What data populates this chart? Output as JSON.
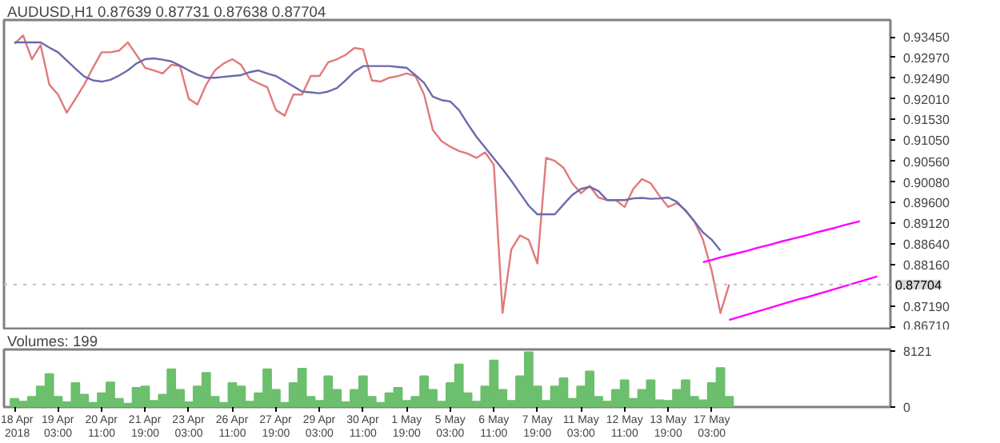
{
  "chart_data": [
    {
      "type": "line",
      "title": "AUDUSD,H1  0.87639 0.87731 0.87638 0.87704",
      "ylim": [
        0.8664,
        0.9384
      ],
      "tick_labels": "y",
      "grid": false,
      "categories": [
        null,
        null,
        null,
        null,
        null,
        null,
        null,
        null,
        null,
        null,
        null,
        null,
        null,
        null,
        null,
        null,
        null,
        null,
        null,
        null,
        null,
        null,
        null,
        null,
        null,
        null,
        null,
        null,
        null,
        null,
        null,
        null,
        null,
        null,
        null,
        null,
        null,
        null,
        null,
        null,
        null,
        null,
        null,
        null,
        null,
        null,
        null,
        null,
        null,
        null,
        null,
        null,
        null,
        null,
        null,
        null,
        null,
        null,
        null,
        null,
        null,
        null,
        null,
        null,
        null,
        null,
        null,
        null,
        null,
        null,
        null,
        null,
        null,
        null,
        null,
        null,
        null,
        null,
        null,
        null,
        null,
        null,
        null,
        null,
        null,
        null,
        null,
        null,
        null,
        null,
        null,
        null,
        null,
        null,
        null,
        null,
        null,
        null,
        null,
        null,
        null
      ],
      "yticks": [
        {
          "value": 0.9345,
          "label": "0.93450"
        },
        {
          "value": 0.9297,
          "label": "0.92970"
        },
        {
          "value": 0.9249,
          "label": "0.92490"
        },
        {
          "value": 0.9201,
          "label": "0.92010"
        },
        {
          "value": 0.9153,
          "label": "0.91530"
        },
        {
          "value": 0.9105,
          "label": "0.91050"
        },
        {
          "value": 0.9056,
          "label": "0.90560"
        },
        {
          "value": 0.9008,
          "label": "0.90080"
        },
        {
          "value": 0.896,
          "label": "0.89600"
        },
        {
          "value": 0.8912,
          "label": "0.89120"
        },
        {
          "value": 0.8864,
          "label": "0.88640"
        },
        {
          "value": 0.8816,
          "label": "0.88160"
        },
        {
          "value": 0.8719,
          "label": "0.87190"
        },
        {
          "value": 0.8671,
          "label": "0.86710"
        }
      ],
      "ref_lines": [
        {
          "axis": "y",
          "value": 0.87704,
          "label": "0.87704",
          "color": "#c0c0c0",
          "line_style": "dotted"
        }
      ],
      "series": [
        {
          "color": "#e07a7a",
          "values": [
            0.9329,
            0.9348,
            0.9293,
            0.9326,
            0.9234,
            0.9211,
            0.9169,
            0.9201,
            0.9234,
            0.9273,
            0.9309,
            0.9309,
            0.9313,
            0.9332,
            0.9303,
            0.9273,
            0.9267,
            0.926,
            0.928,
            0.9277,
            0.9201,
            0.9188,
            0.9234,
            0.9267,
            0.9283,
            0.9293,
            0.928,
            0.9247,
            0.9237,
            0.9228,
            0.9175,
            0.9162,
            0.9211,
            0.9211,
            0.9254,
            0.9254,
            0.9286,
            0.9293,
            0.9303,
            0.9319,
            0.9316,
            0.9244,
            0.9241,
            0.925,
            0.9254,
            0.926,
            0.9254,
            0.9211,
            0.9129,
            0.9103,
            0.909,
            0.908,
            0.9074,
            0.9064,
            0.9077,
            0.9048,
            0.8704,
            0.8851,
            0.8884,
            0.8874,
            0.8819,
            0.9064,
            0.9057,
            0.9041,
            0.9005,
            0.8982,
            0.8999,
            0.8972,
            0.8966,
            0.8966,
            0.895,
            0.8992,
            0.9015,
            0.9005,
            0.8976,
            0.895,
            0.8959,
            0.8943,
            0.8917,
            0.8874,
            0.8802,
            0.8704,
            0.877,
            null,
            null,
            null,
            null,
            null,
            null,
            null,
            null,
            null,
            null,
            null,
            null,
            null,
            null,
            null,
            null,
            null,
            null
          ]
        },
        {
          "color": "#6a6aae",
          "values": [
            0.9332,
            0.9332,
            0.9332,
            0.9332,
            0.932,
            0.9309,
            0.929,
            0.9271,
            0.9253,
            0.9244,
            0.9241,
            0.9245,
            0.9255,
            0.9267,
            0.9283,
            0.9293,
            0.9295,
            0.9292,
            0.9288,
            0.9278,
            0.9267,
            0.9257,
            0.925,
            0.925,
            0.9252,
            0.9254,
            0.9256,
            0.9263,
            0.9267,
            0.926,
            0.9254,
            0.9242,
            0.923,
            0.9218,
            0.9216,
            0.9214,
            0.9218,
            0.9226,
            0.9244,
            0.9264,
            0.9277,
            0.9277,
            0.9277,
            0.9277,
            0.9275,
            0.9273,
            0.9256,
            0.9238,
            0.9206,
            0.9198,
            0.9195,
            0.9175,
            0.9143,
            0.9113,
            0.9088,
            0.9063,
            0.9038,
            0.9011,
            0.8982,
            0.8953,
            0.8933,
            0.8933,
            0.8933,
            0.8956,
            0.8978,
            0.8992,
            0.8997,
            0.8987,
            0.8966,
            0.8966,
            0.8966,
            0.897,
            0.8971,
            0.8969,
            0.897,
            0.8972,
            0.8962,
            0.8941,
            0.8917,
            0.8891,
            0.8874,
            0.8849,
            null,
            null,
            null,
            null,
            null,
            null,
            null,
            null,
            null,
            null,
            null,
            null,
            null,
            null,
            null,
            null,
            null,
            null,
            null
          ]
        },
        {
          "color": "#ff00ff",
          "values": [
            null,
            null,
            null,
            null,
            null,
            null,
            null,
            null,
            null,
            null,
            null,
            null,
            null,
            null,
            null,
            null,
            null,
            null,
            null,
            null,
            null,
            null,
            null,
            null,
            null,
            null,
            null,
            null,
            null,
            null,
            null,
            null,
            null,
            null,
            null,
            null,
            null,
            null,
            null,
            null,
            null,
            null,
            null,
            null,
            null,
            null,
            null,
            null,
            null,
            null,
            null,
            null,
            null,
            null,
            null,
            null,
            null,
            null,
            null,
            null,
            null,
            null,
            null,
            null,
            null,
            null,
            null,
            null,
            null,
            null,
            null,
            null,
            null,
            null,
            null,
            null,
            null,
            null,
            null,
            0.8822,
            0.8827,
            0.8833,
            0.8838,
            0.8843,
            0.8848,
            0.8854,
            0.8859,
            0.8864,
            0.887,
            0.8875,
            0.888,
            0.8885,
            0.8891,
            0.8896,
            0.8901,
            0.8907,
            0.8912,
            0.8917,
            null,
            null,
            null
          ]
        },
        {
          "color": "#ff00ff",
          "values": [
            null,
            null,
            null,
            null,
            null,
            null,
            null,
            null,
            null,
            null,
            null,
            null,
            null,
            null,
            null,
            null,
            null,
            null,
            null,
            null,
            null,
            null,
            null,
            null,
            null,
            null,
            null,
            null,
            null,
            null,
            null,
            null,
            null,
            null,
            null,
            null,
            null,
            null,
            null,
            null,
            null,
            null,
            null,
            null,
            null,
            null,
            null,
            null,
            null,
            null,
            null,
            null,
            null,
            null,
            null,
            null,
            null,
            null,
            null,
            null,
            null,
            null,
            null,
            null,
            null,
            null,
            null,
            null,
            null,
            null,
            null,
            null,
            null,
            null,
            null,
            null,
            null,
            null,
            null,
            null,
            null,
            null,
            0.8688,
            0.8694,
            0.87,
            0.8706,
            0.8712,
            0.8718,
            0.8724,
            0.873,
            0.8736,
            0.8741,
            0.8747,
            0.8753,
            0.8759,
            0.8765,
            0.8771,
            0.8777,
            0.8783,
            0.8789,
            null
          ]
        }
      ]
    },
    {
      "type": "bar",
      "title": "Volumes: 199",
      "ylim": [
        0,
        8400
      ],
      "grid": false,
      "yticks": [
        0,
        8121
      ],
      "categories": [
        "18 Apr 2018",
        null,
        null,
        null,
        null,
        "19 Apr 03:00",
        null,
        null,
        null,
        null,
        "20 Apr 11:00",
        null,
        null,
        null,
        null,
        "21 Apr 19:00",
        null,
        null,
        null,
        null,
        "23 Apr 03:00",
        null,
        null,
        null,
        null,
        "26 Apr 11:00",
        null,
        null,
        null,
        null,
        "27 Apr 19:00",
        null,
        null,
        null,
        null,
        "29 Apr 03:00",
        null,
        null,
        null,
        null,
        "30 Apr 11:00",
        null,
        null,
        null,
        null,
        "1 May 19:00",
        null,
        null,
        null,
        null,
        "5 May 03:00",
        null,
        null,
        null,
        null,
        "6 May 11:00",
        null,
        null,
        null,
        null,
        "7 May 19:00",
        null,
        null,
        null,
        null,
        "11 May 03:00",
        null,
        null,
        null,
        null,
        "12 May 11:00",
        null,
        null,
        null,
        null,
        "13 May 19:00",
        null,
        null,
        null,
        null,
        "17 May 03:00",
        null,
        null,
        null,
        null,
        null,
        null,
        null,
        null,
        null,
        null,
        null,
        null,
        null,
        null,
        null,
        null,
        null,
        null,
        null,
        null
      ],
      "series": [
        {
          "color": "#6cbf6c",
          "values": [
            1200,
            800,
            1500,
            3000,
            4800,
            1500,
            700,
            3500,
            1800,
            600,
            2000,
            3600,
            1200,
            500,
            2800,
            3000,
            900,
            1800,
            5500,
            2500,
            700,
            3000,
            5000,
            1500,
            600,
            3500,
            3000,
            800,
            2000,
            5500,
            2500,
            600,
            3500,
            5600,
            1500,
            900,
            4500,
            2500,
            700,
            2500,
            4500,
            1500,
            600,
            2000,
            2800,
            900,
            1500,
            4500,
            2500,
            800,
            3500,
            6200,
            2000,
            800,
            3000,
            6800,
            2500,
            900,
            4500,
            8000,
            3000,
            900,
            3000,
            4200,
            1200,
            3000,
            5200,
            1500,
            800,
            2500,
            3900,
            1200,
            2500,
            3900,
            1000,
            900,
            2500,
            3900,
            1500,
            1000,
            3500,
            5700,
            1500,
            null,
            null,
            null,
            null,
            null,
            null,
            null,
            null,
            null,
            null,
            null,
            null,
            null,
            null,
            null,
            null,
            null,
            null
          ]
        }
      ]
    }
  ]
}
